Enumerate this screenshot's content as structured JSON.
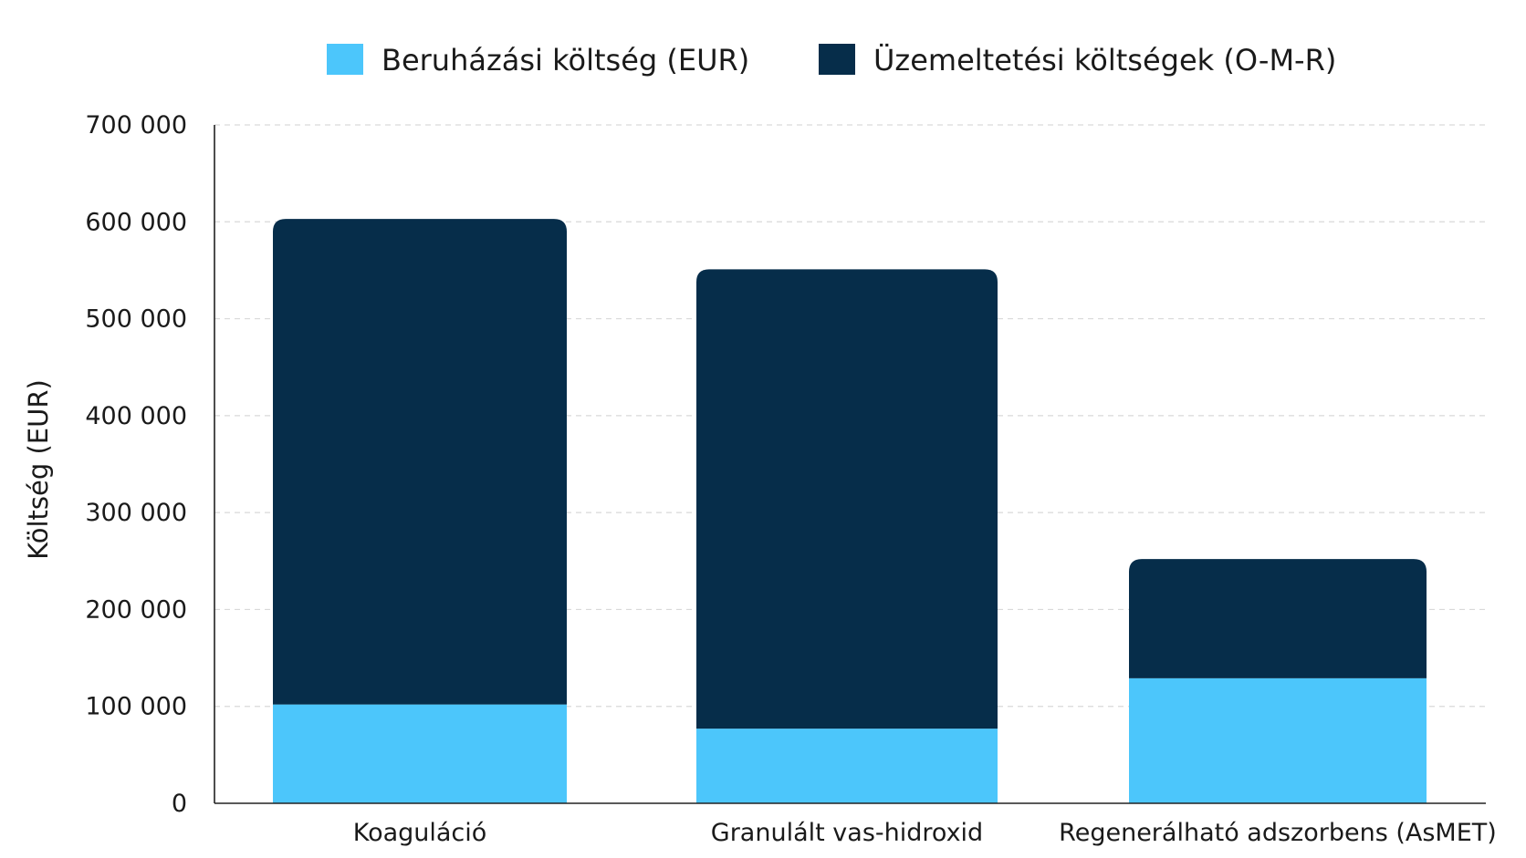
{
  "chart_data": {
    "type": "bar",
    "stacked": true,
    "categories": [
      "Koaguláció",
      "Granulált vas-hidroxid",
      "Regenerálható adszorbens (AsMET)"
    ],
    "series": [
      {
        "name": "Beruházási költség (EUR)",
        "color": "#4cc6fb",
        "values": [
          102000,
          77000,
          129000
        ]
      },
      {
        "name": "Üzemeltetési költségek (O-M-R)",
        "color": "#062d4a",
        "values": [
          501000,
          474000,
          123000
        ]
      }
    ],
    "ylabel": "Költség (EUR)",
    "xlabel": "",
    "ylim": [
      0,
      700000
    ],
    "yticks": [
      0,
      100000,
      200000,
      300000,
      400000,
      500000,
      600000,
      700000
    ],
    "ytick_labels": [
      "0",
      "100 000",
      "200 000",
      "300 000",
      "400 000",
      "500 000",
      "600 000",
      "700 000"
    ],
    "grid": true,
    "legend_position": "top-center"
  }
}
